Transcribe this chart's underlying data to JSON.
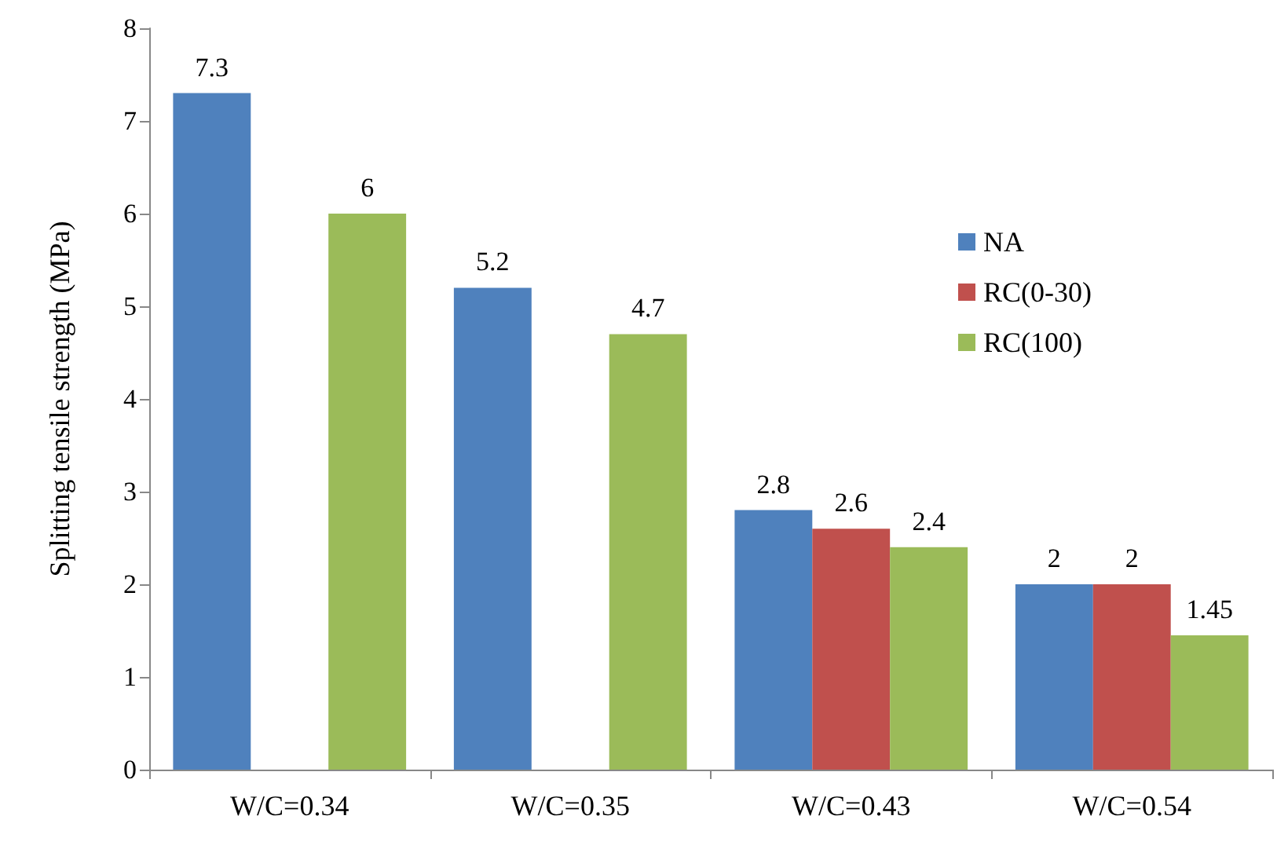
{
  "chart_data": {
    "type": "bar",
    "ylabel": "Splitting tensile strength (MPa)",
    "categories": [
      "W/C=0.34",
      "W/C=0.35",
      "W/C=0.43",
      "W/C=0.54"
    ],
    "series": [
      {
        "name": "NA",
        "color": "#4f81bd",
        "values": [
          7.3,
          5.2,
          2.8,
          2
        ]
      },
      {
        "name": "RC(0-30)",
        "color": "#c0504d",
        "values": [
          null,
          null,
          2.6,
          2
        ]
      },
      {
        "name": "RC(100)",
        "color": "#9bbb59",
        "values": [
          6,
          4.7,
          2.4,
          1.45
        ]
      }
    ],
    "ylim": [
      0,
      8
    ],
    "yticks": [
      0,
      1,
      2,
      3,
      4,
      5,
      6,
      7,
      8
    ],
    "grid": false,
    "legend": "right",
    "data_labels": true
  }
}
